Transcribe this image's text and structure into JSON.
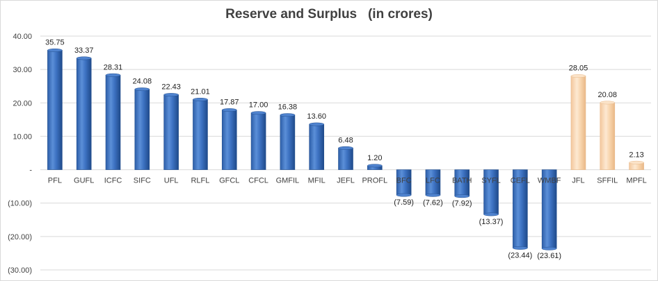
{
  "chart_data": {
    "type": "bar",
    "title": "Reserve and Surplus   (in crores)",
    "xlabel": "",
    "ylabel": "",
    "ylim": [
      -30,
      40
    ],
    "y_ticks": [
      {
        "value": 40,
        "label": "40.00"
      },
      {
        "value": 30,
        "label": "30.00"
      },
      {
        "value": 20,
        "label": "20.00"
      },
      {
        "value": 10,
        "label": "10.00"
      },
      {
        "value": 0,
        "label": "-"
      },
      {
        "value": -10,
        "label": "(10.00)"
      },
      {
        "value": -20,
        "label": "(20.00)"
      },
      {
        "value": -30,
        "label": "(30.00)"
      }
    ],
    "grid": true,
    "legend": "none",
    "colors": {
      "blue_bar": "#3f74c4",
      "blue_bar_dark": "#24508f",
      "peach_bar": "#f9d8b2",
      "peach_bar_dark": "#e8b98a",
      "grid": "#d9d9d9",
      "title": "#404040"
    },
    "bars": [
      {
        "category": "PFL",
        "value": 35.75,
        "label": "35.75",
        "color": "blue"
      },
      {
        "category": "GUFL",
        "value": 33.37,
        "label": "33.37",
        "color": "blue"
      },
      {
        "category": "ICFC",
        "value": 28.31,
        "label": "28.31",
        "color": "blue"
      },
      {
        "category": "SIFC",
        "value": 24.08,
        "label": "24.08",
        "color": "blue"
      },
      {
        "category": "UFL",
        "value": 22.43,
        "label": "22.43",
        "color": "blue"
      },
      {
        "category": "RLFL",
        "value": 21.01,
        "label": "21.01",
        "color": "blue"
      },
      {
        "category": "GFCL",
        "value": 17.87,
        "label": "17.87",
        "color": "blue"
      },
      {
        "category": "CFCL",
        "value": 17.0,
        "label": "17.00",
        "color": "blue"
      },
      {
        "category": "GMFIL",
        "value": 16.38,
        "label": "16.38",
        "color": "blue"
      },
      {
        "category": "MFIL",
        "value": 13.6,
        "label": "13.60",
        "color": "blue"
      },
      {
        "category": "JEFL",
        "value": 6.48,
        "label": "6.48",
        "color": "blue"
      },
      {
        "category": "PROFL",
        "value": 1.2,
        "label": "1.20",
        "color": "blue"
      },
      {
        "category": "BFC",
        "value": -7.59,
        "label": "(7.59)",
        "color": "blue"
      },
      {
        "category": "LFC",
        "value": -7.62,
        "label": "(7.62)",
        "color": "blue"
      },
      {
        "category": "BATH",
        "value": -7.92,
        "label": "(7.92)",
        "color": "blue"
      },
      {
        "category": "SYFL",
        "value": -13.37,
        "label": "(13.37)",
        "color": "blue"
      },
      {
        "category": "CEFL",
        "value": -23.44,
        "label": "(23.44)",
        "color": "blue"
      },
      {
        "category": "WMBF",
        "value": -23.61,
        "label": "(23.61)",
        "color": "blue"
      },
      {
        "category": "JFL",
        "value": 28.05,
        "label": "28.05",
        "color": "peach"
      },
      {
        "category": "SFFIL",
        "value": 20.08,
        "label": "20.08",
        "color": "peach"
      },
      {
        "category": "MPFL",
        "value": 2.13,
        "label": "2.13",
        "color": "peach"
      }
    ]
  }
}
